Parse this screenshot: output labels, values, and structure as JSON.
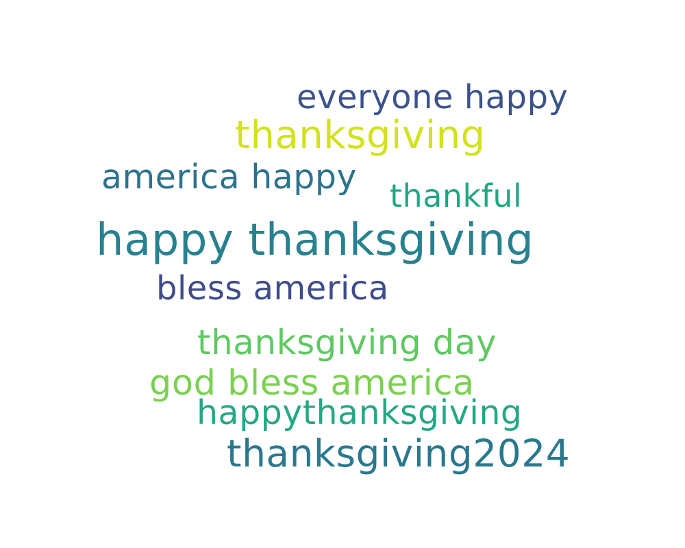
{
  "wordcloud": {
    "background": "#ffffff",
    "words": [
      {
        "text": "everyone happy",
        "color": "#3b528b"
      },
      {
        "text": "thanksgiving",
        "color": "#d2e21b"
      },
      {
        "text": "america happy",
        "color": "#2c728e"
      },
      {
        "text": "thankful",
        "color": "#21a685"
      },
      {
        "text": "happy thanksgiving",
        "color": "#27818e"
      },
      {
        "text": "bless america",
        "color": "#3e4c8a"
      },
      {
        "text": "thanksgiving day",
        "color": "#5ec962"
      },
      {
        "text": "god bless america",
        "color": "#7ad151"
      },
      {
        "text": "happythanksgiving",
        "color": "#22a884"
      },
      {
        "text": "thanksgiving2024",
        "color": "#2a788e"
      }
    ]
  }
}
